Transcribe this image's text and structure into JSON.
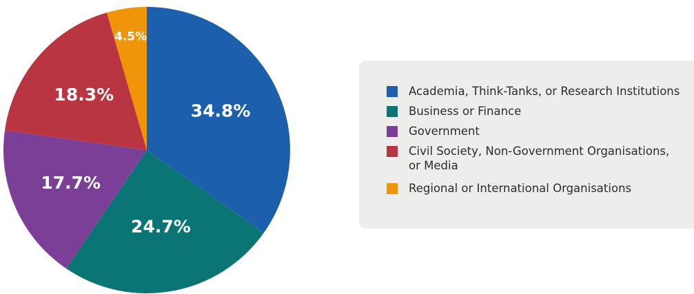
{
  "chart_data": {
    "type": "pie",
    "title": "",
    "slices": [
      {
        "label": "Academia, Think-Tanks, or Research Institutions",
        "value": 34.8,
        "value_label": "34.8%",
        "color": "#1b5fad"
      },
      {
        "label": "Business or Finance",
        "value": 24.7,
        "value_label": "24.7%",
        "color": "#0b7474"
      },
      {
        "label": "Government",
        "value": 17.7,
        "value_label": "17.7%",
        "color": "#7b3f98"
      },
      {
        "label": "Civil Society, Non-Government Organisations, or Media",
        "value": 18.3,
        "value_label": "18.3%",
        "color": "#b83541"
      },
      {
        "label": "Regional or International Organisations",
        "value": 4.5,
        "value_label": "4.5%",
        "color": "#f0950a"
      }
    ],
    "start_angle_deg": 0,
    "direction": "clockwise",
    "legend_position": "right"
  },
  "legend": {
    "items": [
      {
        "label": "Academia, Think-Tanks, or Research Institutions",
        "color": "#1b5fad"
      },
      {
        "label": "Business or Finance",
        "color": "#0b7474"
      },
      {
        "label": "Government",
        "color": "#7b3f98"
      },
      {
        "label": "Civil Society, Non-Government Organisations, or Media",
        "color": "#b83541"
      },
      {
        "label": "Regional or International Organisations",
        "color": "#f0950a"
      }
    ]
  }
}
